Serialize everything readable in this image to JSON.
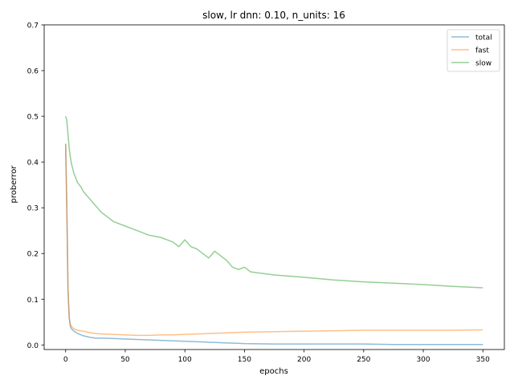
{
  "chart_data": {
    "type": "line",
    "title": "slow, lr dnn: 0.10, n_units: 16",
    "xlabel": "epochs",
    "ylabel": "proberror",
    "xlim": [
      -18,
      368
    ],
    "ylim": [
      -0.01,
      0.7
    ],
    "xticks": [
      0,
      50,
      100,
      150,
      200,
      250,
      300,
      350
    ],
    "xtick_labels": [
      "0",
      "50",
      "100",
      "150",
      "200",
      "250",
      "300",
      "350"
    ],
    "yticks": [
      0.0,
      0.1,
      0.2,
      0.3,
      0.4,
      0.5,
      0.6,
      0.7
    ],
    "ytick_labels": [
      "0.0",
      "0.1",
      "0.2",
      "0.3",
      "0.4",
      "0.5",
      "0.6",
      "0.7"
    ],
    "grid": false,
    "legend_position": "top-right",
    "series": [
      {
        "name": "total",
        "color": "#1f77b4",
        "x": [
          0,
          1,
          2,
          3,
          4,
          5,
          7,
          10,
          15,
          20,
          25,
          30,
          40,
          50,
          60,
          70,
          80,
          90,
          100,
          110,
          120,
          130,
          140,
          150,
          175,
          200,
          225,
          250,
          275,
          300,
          325,
          350
        ],
        "y": [
          0.44,
          0.3,
          0.12,
          0.06,
          0.04,
          0.035,
          0.03,
          0.025,
          0.02,
          0.017,
          0.015,
          0.015,
          0.014,
          0.013,
          0.012,
          0.011,
          0.01,
          0.009,
          0.008,
          0.007,
          0.006,
          0.005,
          0.004,
          0.003,
          0.002,
          0.002,
          0.002,
          0.002,
          0.001,
          0.001,
          0.001,
          0.001
        ]
      },
      {
        "name": "fast",
        "color": "#ff7f0e",
        "x": [
          0,
          1,
          2,
          3,
          4,
          5,
          7,
          10,
          15,
          20,
          25,
          30,
          40,
          50,
          60,
          70,
          80,
          90,
          100,
          110,
          120,
          130,
          140,
          150,
          175,
          200,
          225,
          250,
          275,
          300,
          325,
          350
        ],
        "y": [
          0.44,
          0.3,
          0.12,
          0.06,
          0.045,
          0.04,
          0.035,
          0.032,
          0.03,
          0.027,
          0.025,
          0.024,
          0.023,
          0.022,
          0.021,
          0.021,
          0.022,
          0.022,
          0.023,
          0.024,
          0.025,
          0.026,
          0.027,
          0.028,
          0.029,
          0.03,
          0.031,
          0.032,
          0.032,
          0.032,
          0.032,
          0.033
        ]
      },
      {
        "name": "slow",
        "color": "#2ca02c",
        "x": [
          0,
          1,
          2,
          3,
          4,
          5,
          7,
          10,
          13,
          15,
          20,
          25,
          30,
          40,
          50,
          60,
          70,
          80,
          90,
          95,
          100,
          105,
          110,
          115,
          120,
          125,
          130,
          135,
          140,
          145,
          150,
          155,
          160,
          175,
          200,
          225,
          250,
          275,
          300,
          325,
          350
        ],
        "y": [
          0.5,
          0.49,
          0.46,
          0.43,
          0.41,
          0.395,
          0.375,
          0.355,
          0.345,
          0.335,
          0.32,
          0.305,
          0.29,
          0.27,
          0.26,
          0.25,
          0.24,
          0.235,
          0.225,
          0.215,
          0.23,
          0.215,
          0.21,
          0.2,
          0.19,
          0.205,
          0.195,
          0.185,
          0.17,
          0.165,
          0.17,
          0.16,
          0.158,
          0.153,
          0.148,
          0.142,
          0.138,
          0.135,
          0.132,
          0.128,
          0.125
        ]
      }
    ]
  }
}
